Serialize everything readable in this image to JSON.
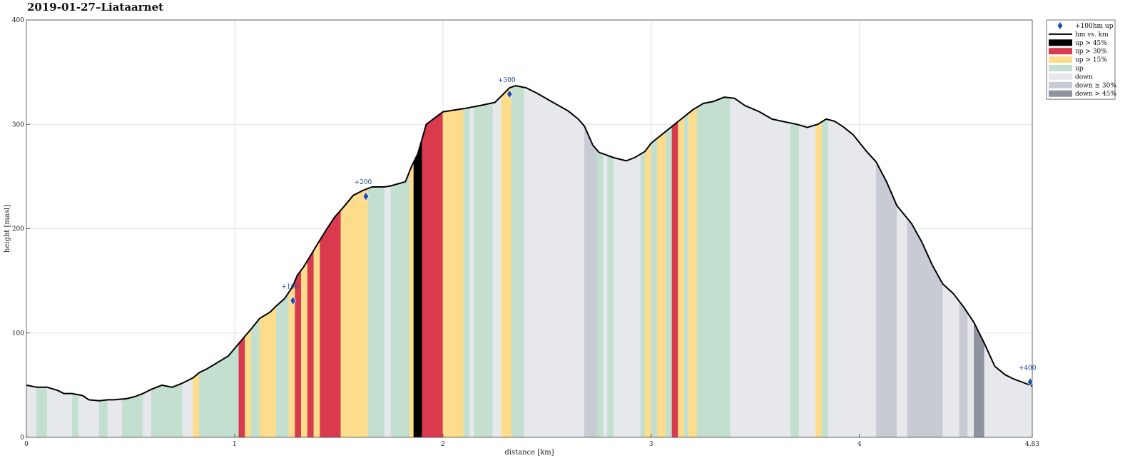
{
  "title": "2019-01-27–Liataarnet",
  "chart_data": {
    "type": "area",
    "title": "2019-01-27–Liataarnet",
    "xlabel": "distance [km]",
    "ylabel": "height [masl]",
    "xlim": [
      0,
      4.83
    ],
    "ylim": [
      0,
      400
    ],
    "x_ticks": [
      0,
      1,
      2,
      3,
      4,
      4.83
    ],
    "x_tick_labels": [
      "0",
      "1",
      "2",
      "3",
      "4",
      "4.83"
    ],
    "y_ticks": [
      0,
      100,
      200,
      300,
      400
    ],
    "grid": true,
    "legend_position": "outside top-right",
    "legend": [
      {
        "label": "+100hm up",
        "kind": "marker",
        "color": "#1f4fa8"
      },
      {
        "label": "hm vs. km",
        "kind": "line",
        "color": "#000000"
      },
      {
        "label": "up > 45%",
        "kind": "patch",
        "color": "#000000"
      },
      {
        "label": "up > 30%",
        "kind": "patch",
        "color": "#d93a4e"
      },
      {
        "label": "up > 15%",
        "kind": "patch",
        "color": "#fddc8c"
      },
      {
        "label": "up",
        "kind": "patch",
        "color": "#c2dfd0"
      },
      {
        "label": "down",
        "kind": "patch",
        "color": "#e6e8ec"
      },
      {
        "label": "down ≥ 30%",
        "kind": "patch",
        "color": "#c8cbd3"
      },
      {
        "label": "down > 45%",
        "kind": "patch",
        "color": "#8e949f"
      }
    ],
    "profile": {
      "x": [
        0,
        0.05,
        0.1,
        0.15,
        0.18,
        0.22,
        0.27,
        0.3,
        0.35,
        0.39,
        0.42,
        0.48,
        0.52,
        0.56,
        0.6,
        0.65,
        0.7,
        0.75,
        0.8,
        0.83,
        0.87,
        0.92,
        0.97,
        1.02,
        1.05,
        1.08,
        1.12,
        1.17,
        1.2,
        1.24,
        1.28,
        1.3,
        1.33,
        1.37,
        1.4,
        1.44,
        1.48,
        1.52,
        1.57,
        1.62,
        1.66,
        1.72,
        1.75,
        1.82,
        1.85,
        1.88,
        1.92,
        2.0,
        2.1,
        2.18,
        2.25,
        2.28,
        2.32,
        2.35,
        2.4,
        2.45,
        2.52,
        2.6,
        2.65,
        2.68,
        2.72,
        2.75,
        2.78,
        2.82,
        2.88,
        2.92,
        2.97,
        3.0,
        3.05,
        3.1,
        3.15,
        3.2,
        3.25,
        3.3,
        3.35,
        3.4,
        3.45,
        3.52,
        3.58,
        3.65,
        3.7,
        3.75,
        3.8,
        3.84,
        3.88,
        3.92,
        3.97,
        4.03,
        4.08,
        4.13,
        4.18,
        4.25,
        4.3,
        4.35,
        4.4,
        4.45,
        4.5,
        4.55,
        4.6,
        4.65,
        4.7,
        4.74,
        4.78,
        4.82,
        4.83
      ],
      "y": [
        50,
        48,
        48,
        45,
        42,
        42,
        40,
        36,
        35,
        36,
        36,
        37,
        39,
        42,
        46,
        50,
        48,
        52,
        57,
        62,
        66,
        72,
        78,
        90,
        97,
        104,
        114,
        120,
        126,
        133,
        145,
        155,
        163,
        176,
        186,
        199,
        211,
        220,
        232,
        237,
        240,
        240,
        241,
        245,
        260,
        272,
        300,
        312,
        315,
        318,
        321,
        327,
        335,
        337,
        335,
        330,
        322,
        313,
        305,
        298,
        280,
        273,
        271,
        268,
        265,
        268,
        274,
        282,
        290,
        298,
        306,
        314,
        320,
        322,
        326,
        325,
        318,
        312,
        305,
        302,
        300,
        297,
        300,
        305,
        303,
        298,
        290,
        275,
        264,
        245,
        222,
        205,
        187,
        165,
        147,
        138,
        125,
        110,
        90,
        68,
        60,
        56,
        53,
        50,
        49
      ],
      "markers": [
        {
          "x": 1.28,
          "y": 131,
          "label": "+100"
        },
        {
          "x": 1.63,
          "y": 231,
          "label": "+200"
        },
        {
          "x": 2.32,
          "y": 329,
          "label": "+300"
        },
        {
          "x": 4.82,
          "y": 53,
          "label": "+400"
        }
      ]
    },
    "segments": [
      {
        "x0": 0.0,
        "x1": 0.05,
        "class": "down"
      },
      {
        "x0": 0.05,
        "x1": 0.1,
        "class": "up"
      },
      {
        "x0": 0.1,
        "x1": 0.22,
        "class": "down"
      },
      {
        "x0": 0.22,
        "x1": 0.25,
        "class": "up"
      },
      {
        "x0": 0.25,
        "x1": 0.35,
        "class": "down"
      },
      {
        "x0": 0.35,
        "x1": 0.39,
        "class": "up"
      },
      {
        "x0": 0.39,
        "x1": 0.46,
        "class": "down"
      },
      {
        "x0": 0.46,
        "x1": 0.56,
        "class": "up"
      },
      {
        "x0": 0.56,
        "x1": 0.6,
        "class": "down"
      },
      {
        "x0": 0.6,
        "x1": 0.75,
        "class": "up"
      },
      {
        "x0": 0.75,
        "x1": 0.8,
        "class": "down"
      },
      {
        "x0": 0.8,
        "x1": 0.83,
        "class": "up > 15%"
      },
      {
        "x0": 0.83,
        "x1": 1.02,
        "class": "up"
      },
      {
        "x0": 1.02,
        "x1": 1.05,
        "class": "up > 30%"
      },
      {
        "x0": 1.05,
        "x1": 1.08,
        "class": "up > 15%"
      },
      {
        "x0": 1.08,
        "x1": 1.12,
        "class": "up"
      },
      {
        "x0": 1.12,
        "x1": 1.2,
        "class": "up > 15%"
      },
      {
        "x0": 1.2,
        "x1": 1.26,
        "class": "up"
      },
      {
        "x0": 1.26,
        "x1": 1.29,
        "class": "up > 15%"
      },
      {
        "x0": 1.29,
        "x1": 1.32,
        "class": "up > 30%"
      },
      {
        "x0": 1.32,
        "x1": 1.35,
        "class": "up > 15%"
      },
      {
        "x0": 1.35,
        "x1": 1.38,
        "class": "up > 30%"
      },
      {
        "x0": 1.38,
        "x1": 1.41,
        "class": "up > 15%"
      },
      {
        "x0": 1.41,
        "x1": 1.51,
        "class": "up > 30%"
      },
      {
        "x0": 1.51,
        "x1": 1.64,
        "class": "up > 15%"
      },
      {
        "x0": 1.64,
        "x1": 1.72,
        "class": "up"
      },
      {
        "x0": 1.72,
        "x1": 1.75,
        "class": "down"
      },
      {
        "x0": 1.75,
        "x1": 1.84,
        "class": "up"
      },
      {
        "x0": 1.84,
        "x1": 1.86,
        "class": "up > 15%"
      },
      {
        "x0": 1.86,
        "x1": 1.9,
        "class": "up > 45%"
      },
      {
        "x0": 1.9,
        "x1": 2.0,
        "class": "up > 30%"
      },
      {
        "x0": 2.0,
        "x1": 2.1,
        "class": "up > 15%"
      },
      {
        "x0": 2.1,
        "x1": 2.13,
        "class": "up"
      },
      {
        "x0": 2.13,
        "x1": 2.15,
        "class": "down"
      },
      {
        "x0": 2.15,
        "x1": 2.24,
        "class": "up"
      },
      {
        "x0": 2.24,
        "x1": 2.28,
        "class": "down"
      },
      {
        "x0": 2.28,
        "x1": 2.33,
        "class": "up > 15%"
      },
      {
        "x0": 2.33,
        "x1": 2.39,
        "class": "up"
      },
      {
        "x0": 2.39,
        "x1": 2.68,
        "class": "down"
      },
      {
        "x0": 2.68,
        "x1": 2.74,
        "class": "down ≥ 30%"
      },
      {
        "x0": 2.74,
        "x1": 2.77,
        "class": "up"
      },
      {
        "x0": 2.77,
        "x1": 2.79,
        "class": "down"
      },
      {
        "x0": 2.79,
        "x1": 2.82,
        "class": "up"
      },
      {
        "x0": 2.82,
        "x1": 2.95,
        "class": "down"
      },
      {
        "x0": 2.95,
        "x1": 2.97,
        "class": "up"
      },
      {
        "x0": 2.97,
        "x1": 3.0,
        "class": "up > 15%"
      },
      {
        "x0": 3.0,
        "x1": 3.03,
        "class": "up"
      },
      {
        "x0": 3.03,
        "x1": 3.07,
        "class": "up > 15%"
      },
      {
        "x0": 3.07,
        "x1": 3.1,
        "class": "up"
      },
      {
        "x0": 3.1,
        "x1": 3.13,
        "class": "up > 30%"
      },
      {
        "x0": 3.13,
        "x1": 3.16,
        "class": "up > 15%"
      },
      {
        "x0": 3.16,
        "x1": 3.18,
        "class": "up"
      },
      {
        "x0": 3.18,
        "x1": 3.22,
        "class": "up > 15%"
      },
      {
        "x0": 3.22,
        "x1": 3.38,
        "class": "up"
      },
      {
        "x0": 3.38,
        "x1": 3.67,
        "class": "down"
      },
      {
        "x0": 3.67,
        "x1": 3.71,
        "class": "up"
      },
      {
        "x0": 3.71,
        "x1": 3.79,
        "class": "down"
      },
      {
        "x0": 3.79,
        "x1": 3.82,
        "class": "up > 15%"
      },
      {
        "x0": 3.82,
        "x1": 3.85,
        "class": "up"
      },
      {
        "x0": 3.85,
        "x1": 4.08,
        "class": "down"
      },
      {
        "x0": 4.08,
        "x1": 4.18,
        "class": "down ≥ 30%"
      },
      {
        "x0": 4.18,
        "x1": 4.23,
        "class": "down"
      },
      {
        "x0": 4.23,
        "x1": 4.4,
        "class": "down ≥ 30%"
      },
      {
        "x0": 4.4,
        "x1": 4.48,
        "class": "down"
      },
      {
        "x0": 4.48,
        "x1": 4.52,
        "class": "down ≥ 30%"
      },
      {
        "x0": 4.52,
        "x1": 4.55,
        "class": "down"
      },
      {
        "x0": 4.55,
        "x1": 4.6,
        "class": "down > 45%"
      },
      {
        "x0": 4.6,
        "x1": 4.83,
        "class": "down"
      }
    ]
  }
}
